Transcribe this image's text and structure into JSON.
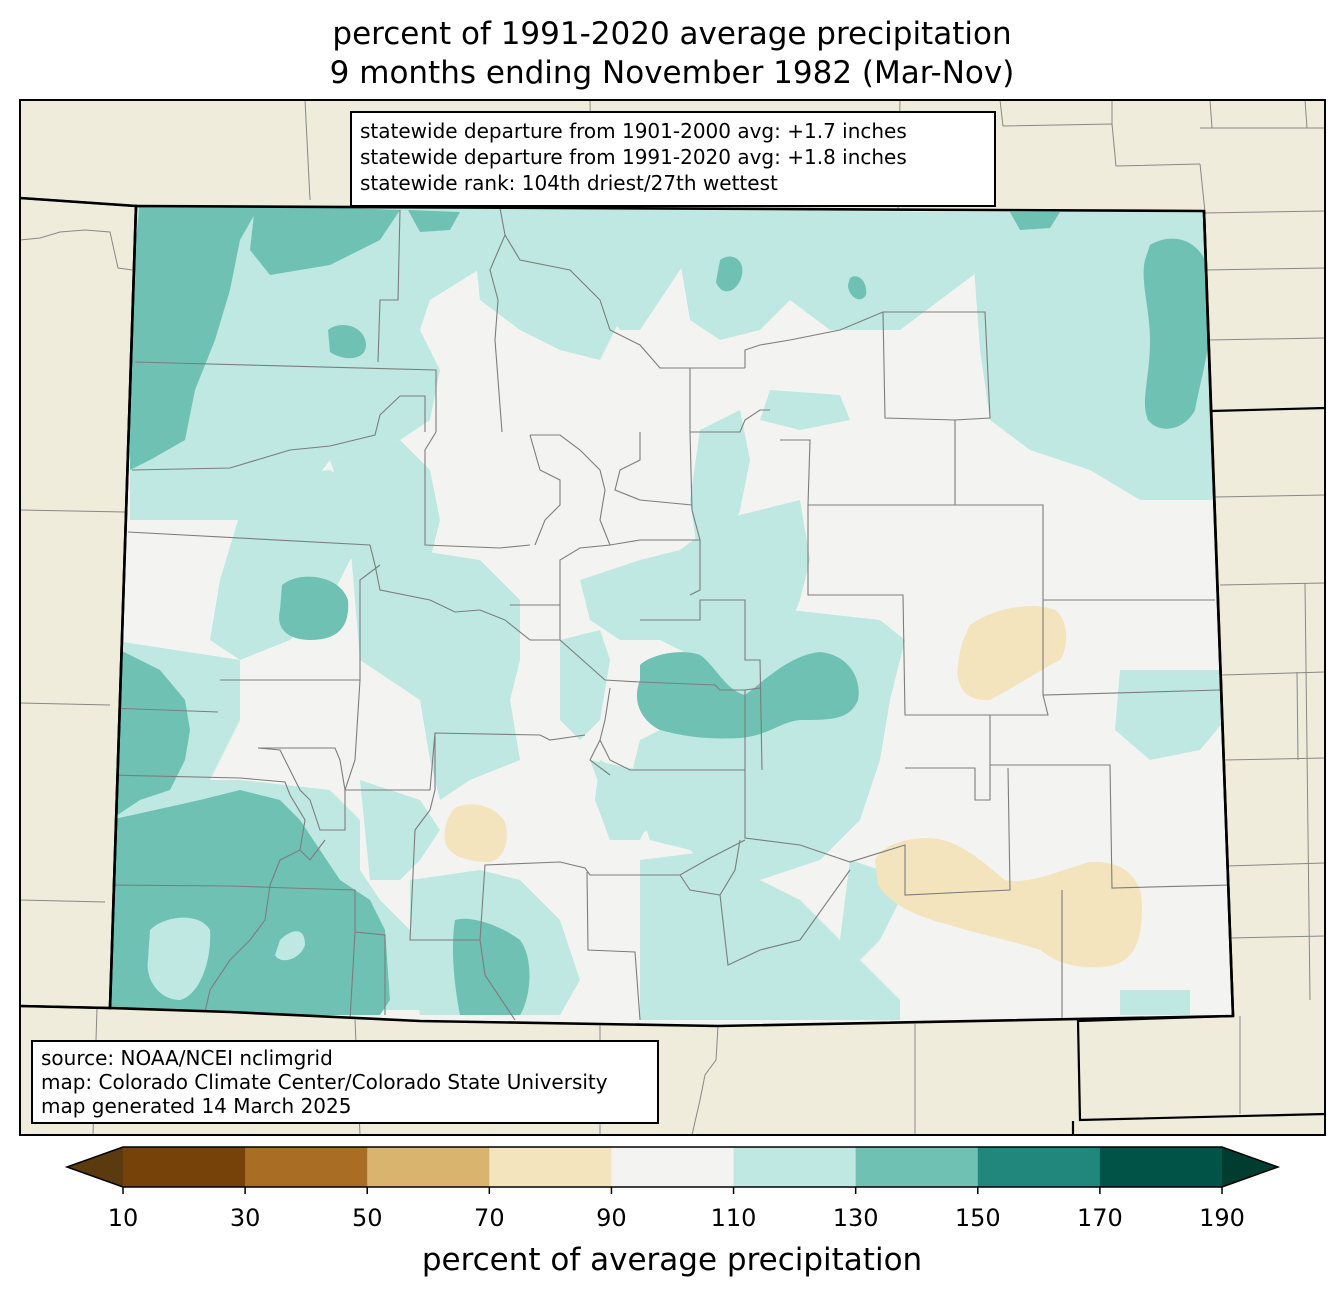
{
  "title_line1": "percent of 1991-2020 average precipitation",
  "title_line2": "9 months ending November 1982 (Mar-Nov)",
  "stats": [
    "statewide departure from 1901-2000 avg: +1.7 inches",
    "statewide departure from 1991-2020 avg: +1.8 inches",
    "statewide rank: 104th driest/27th wettest"
  ],
  "source_lines": [
    "source: NOAA/NCEI nclimgrid",
    "map: Colorado Climate Center/Colorado State University",
    "map generated 14 March 2025"
  ],
  "colorbar": {
    "label": "percent of average precipitation",
    "ticks": [
      "10",
      "30",
      "50",
      "70",
      "90",
      "110",
      "130",
      "150",
      "170",
      "190"
    ],
    "colors": [
      "#5c3a10",
      "#764209",
      "#a96e24",
      "#d8b46f",
      "#f3e4bd",
      "#f3f4f2",
      "#bee8e1",
      "#6fc1b4",
      "#21877d",
      "#005346",
      "#003c30"
    ]
  },
  "colors": {
    "background": "#efecdc",
    "ocean_frame": "#000000",
    "state_fill_base": "#f3f4f2"
  }
}
